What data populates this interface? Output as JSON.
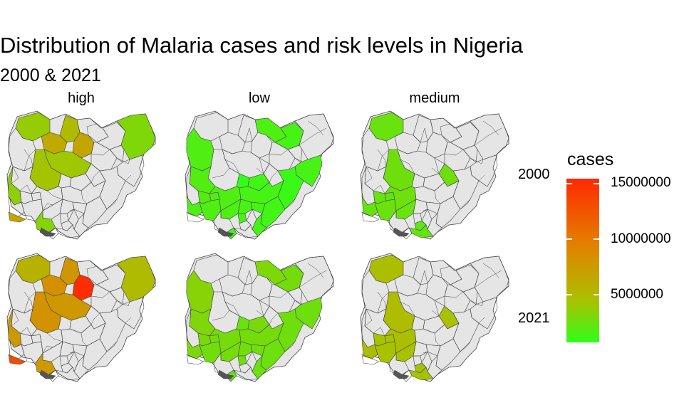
{
  "title": "Distribution of Malaria cases and risk levels in Nigeria",
  "subtitle": "2000 & 2021",
  "facets": [
    "high",
    "low",
    "medium"
  ],
  "rows": [
    "2000",
    "2021"
  ],
  "legend": {
    "title": "cases",
    "ticks": [
      "15000000",
      "10000000",
      "5000000"
    ],
    "tick_values": [
      15000000,
      10000000,
      5000000
    ],
    "min": 1000000,
    "max": 16000000,
    "colors": [
      "#2eff1a",
      "#a9c200",
      "#e38000",
      "#ff2a00"
    ]
  },
  "colors": {
    "no_data": "#e5e5e5",
    "border": "#444444",
    "lagos_lagoon": "#555555"
  },
  "chart_data": {
    "type": "choropleth",
    "facet_columns": [
      "high",
      "low",
      "medium"
    ],
    "facet_rows": [
      "2000",
      "2021"
    ],
    "fill": "cases",
    "value_unit": "cases",
    "states": {
      "high": {
        "2000": {
          "Sokoto": 5200000,
          "Zamfara": 7800000,
          "Katsina": 6500000,
          "Kano": 8200000,
          "Kaduna": 5600000,
          "Niger": 5800000,
          "Borno": 4300000,
          "Oyo": 5000000,
          "Lagos": 8200000,
          "Delta": 4500000
        },
        "2021": {
          "Sokoto": 7200000,
          "Zamfara": 9800000,
          "Katsina": 9400000,
          "Kano": 15800000,
          "Kaduna": 9200000,
          "Niger": 9600000,
          "Borno": 6500000,
          "Oyo": 9000000,
          "Lagos": 14000000,
          "Delta": 9000000
        }
      },
      "low": {
        "2000": {
          "Kebbi": 2400000,
          "Jigawa": 2300000,
          "Yobe": 2000000,
          "Adamawa": 2000000,
          "Kwara": 2500000,
          "FCT": 1200000,
          "Nasarawa": 1800000,
          "Benue": 2000000,
          "Taraba": 1500000,
          "Kogi": 2300000,
          "Ogun": 2200000,
          "Osun": 2600000,
          "Ekiti": 2500000,
          "Ondo": 2400000,
          "Edo": 2300000,
          "Enugu": 2000000,
          "Ebonyi": 2000000,
          "Cross River": 1800000,
          "Akwa Ibom": 1900000,
          "Bayelsa": 1600000,
          "Anambra": 2100000
        },
        "2021": {
          "Kebbi": 4600000,
          "Jigawa": 4200000,
          "Yobe": 3900000,
          "Adamawa": 3600000,
          "Kwara": 4300000,
          "FCT": 3300000,
          "Nasarawa": 4100000,
          "Benue": 3900000,
          "Taraba": 3600000,
          "Kogi": 3900000,
          "Ogun": 4200000,
          "Osun": 4000000,
          "Ekiti": 3900000,
          "Ondo": 3800000,
          "Edo": 3900000,
          "Enugu": 3700000,
          "Ebonyi": 3600000,
          "Cross River": 3500000,
          "Akwa Ibom": 3400000,
          "Bayelsa": 3000000,
          "Anambra": 3600000
        }
      },
      "medium": {
        "2000": {
          "Sokoto": 3400000,
          "Niger": 3600000,
          "Ogun": 3200000,
          "Osun": 3300000,
          "Ekiti": 3200000,
          "Kogi": 3500000,
          "Plateau": 3600000,
          "Ondo": 3400000,
          "Edo": 3300000,
          "Imo": 3000000,
          "Rivers": 3200000
        },
        "2021": {
          "Sokoto": 6200000,
          "Niger": 6400000,
          "Ogun": 6200000,
          "Osun": 6000000,
          "Ekiti": 5900000,
          "Kogi": 6300000,
          "Plateau": 6100000,
          "Ondo": 6000000,
          "Edo": 6100000,
          "Imo": 5800000,
          "Rivers": 6000000
        }
      }
    }
  }
}
